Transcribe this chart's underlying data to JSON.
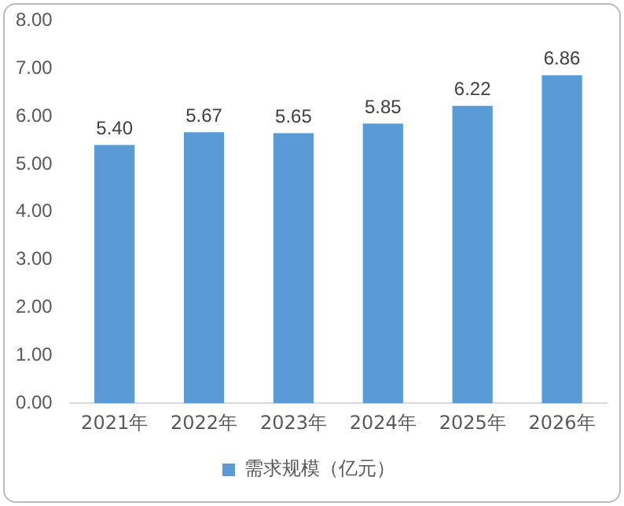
{
  "chart_data": {
    "type": "bar",
    "categories": [
      "2021年",
      "2022年",
      "2023年",
      "2024年",
      "2025年",
      "2026年"
    ],
    "series": [
      {
        "name": "需求规模（亿元）",
        "color": "#5b9bd5",
        "values": [
          5.4,
          5.67,
          5.65,
          5.85,
          6.22,
          6.86
        ]
      }
    ],
    "ylim": [
      0,
      8
    ],
    "yticks": [
      {
        "value": 0,
        "label": "0.00"
      },
      {
        "value": 1,
        "label": "1.00"
      },
      {
        "value": 2,
        "label": "2.00"
      },
      {
        "value": 3,
        "label": "3.00"
      },
      {
        "value": 4,
        "label": "4.00"
      },
      {
        "value": 5,
        "label": "5.00"
      },
      {
        "value": 6,
        "label": "6.00"
      },
      {
        "value": 7,
        "label": "7.00"
      },
      {
        "value": 8,
        "label": "8.00"
      }
    ],
    "value_labels": [
      "5.40",
      "5.67",
      "5.65",
      "5.85",
      "6.22",
      "6.86"
    ],
    "grid": false,
    "legend": "bottom"
  }
}
